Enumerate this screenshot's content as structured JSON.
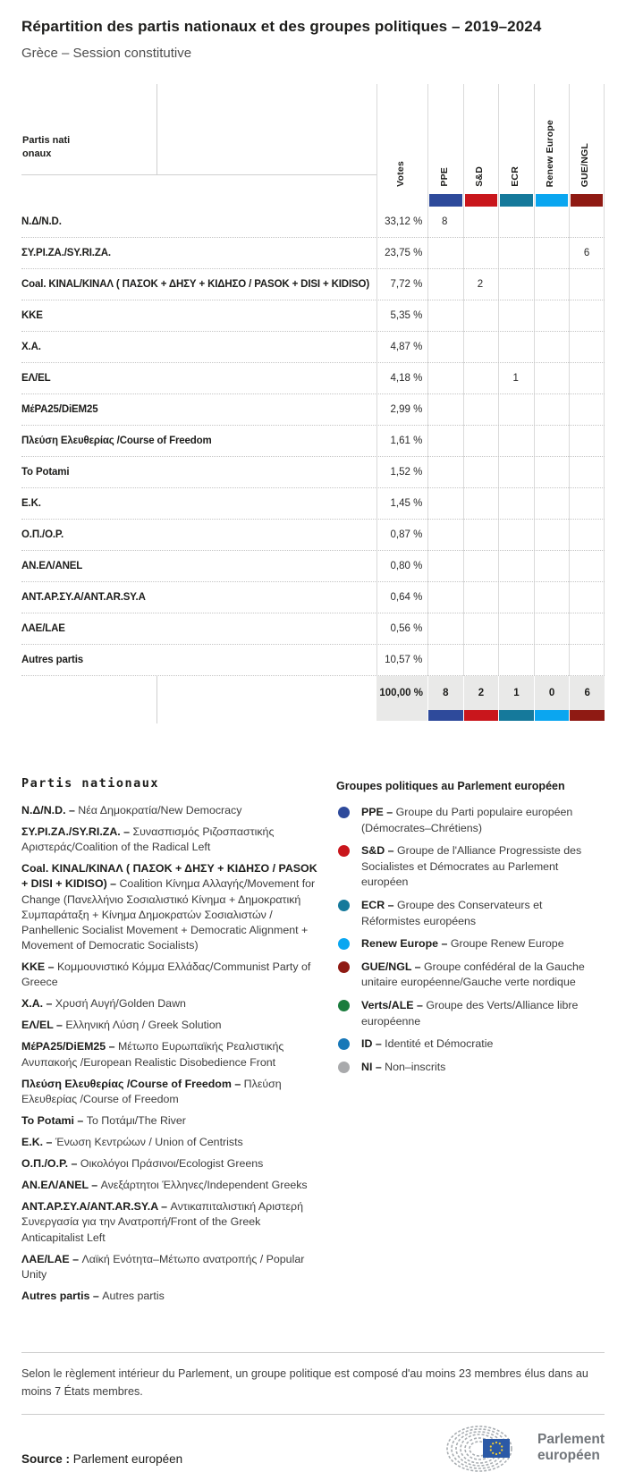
{
  "header": {
    "title": "Répartition des partis nationaux et des groupes politiques – 2019–2024",
    "subtitle": "Grèce – Session constitutive"
  },
  "table": {
    "row_header": "Partis nationaux",
    "votes_header": "Votes",
    "groups": [
      {
        "label": "PPE",
        "color": "#2e4a9b"
      },
      {
        "label": "S&D",
        "color": "#c9161c"
      },
      {
        "label": "ECR",
        "color": "#15799b"
      },
      {
        "label": "Renew Europe",
        "color": "#0aa6f0"
      },
      {
        "label": "GUE/NGL",
        "color": "#8f1a13"
      }
    ],
    "rows": [
      {
        "party": "Ν.Δ/N.D.",
        "votes": "33,12 %",
        "seats": [
          "8",
          "",
          "",
          "",
          ""
        ]
      },
      {
        "party": "ΣΥ.ΡΙ.ΖΑ./SY.RI.ZA.",
        "votes": "23,75 %",
        "seats": [
          "",
          "",
          "",
          "",
          "6"
        ]
      },
      {
        "party": "Coal. KINAL/ΚΙΝΑΛ ( ΠΑΣΟΚ + ΔΗΣΥ + ΚΙΔΗΣΟ / PASOK + DISI + KIDISO)",
        "votes": "7,72 %",
        "seats": [
          "",
          "2",
          "",
          "",
          ""
        ]
      },
      {
        "party": "ΚΚΕ",
        "votes": "5,35 %",
        "seats": [
          "",
          "",
          "",
          "",
          ""
        ]
      },
      {
        "party": "Χ.Α.",
        "votes": "4,87 %",
        "seats": [
          "",
          "",
          "",
          "",
          ""
        ]
      },
      {
        "party": "ΕΛ/EL",
        "votes": "4,18 %",
        "seats": [
          "",
          "",
          "1",
          "",
          ""
        ]
      },
      {
        "party": "ΜέΡΑ25/DiEM25",
        "votes": "2,99 %",
        "seats": [
          "",
          "",
          "",
          "",
          ""
        ]
      },
      {
        "party": "Πλεύση Ελευθερίας /Course of Freedom",
        "votes": "1,61 %",
        "seats": [
          "",
          "",
          "",
          "",
          ""
        ]
      },
      {
        "party": "To Potami",
        "votes": "1,52 %",
        "seats": [
          "",
          "",
          "",
          "",
          ""
        ]
      },
      {
        "party": "Ε.Κ.",
        "votes": "1,45 %",
        "seats": [
          "",
          "",
          "",
          "",
          ""
        ]
      },
      {
        "party": "Ο.Π./O.P.",
        "votes": "0,87 %",
        "seats": [
          "",
          "",
          "",
          "",
          ""
        ]
      },
      {
        "party": "ΑΝ.ΕΛ/ANEL",
        "votes": "0,80 %",
        "seats": [
          "",
          "",
          "",
          "",
          ""
        ]
      },
      {
        "party": "ΑΝΤ.ΑΡ.ΣΥ.Α/ANT.AR.SY.A",
        "votes": "0,64 %",
        "seats": [
          "",
          "",
          "",
          "",
          ""
        ]
      },
      {
        "party": "ΛΑΕ/LAE",
        "votes": "0,56 %",
        "seats": [
          "",
          "",
          "",
          "",
          ""
        ]
      },
      {
        "party": "Autres partis",
        "votes": "10,57 %",
        "seats": [
          "",
          "",
          "",
          "",
          ""
        ]
      }
    ],
    "total": {
      "votes": "100,00 %",
      "seats": [
        "8",
        "2",
        "1",
        "0",
        "6"
      ]
    }
  },
  "legend_parties": {
    "heading": "Partis nationaux",
    "items": [
      {
        "name": "Ν.Δ/N.D.",
        "description": "Νέα Δημοκρατία/New Democracy"
      },
      {
        "name": "ΣΥ.ΡΙ.ΖΑ./SY.RI.ZA.",
        "description": "Συνασπισμός Ριζοσπαστικής Αριστεράς/Coalition of the Radical Left"
      },
      {
        "name": "Coal. KINAL/ΚΙΝΑΛ ( ΠΑΣΟΚ + ΔΗΣΥ + ΚΙΔΗΣΟ / PASOK + DISI + KIDISO)",
        "description": "Coalition Κίνημα Αλλαγής/Movement for Change (Πανελλήνιο Σοσιαλιστικό Κίνημα + Δημοκρατική Συμπαράταξη + Κίνημα Δημοκρατών Σοσιαλιστών / Panhellenic Socialist Movement + Democratic Alignment + Movement of Democratic Socialists)"
      },
      {
        "name": "ΚΚΕ",
        "description": "Κομμουνιστικό Κόμμα Ελλάδας/Communist Party of Greece"
      },
      {
        "name": "Χ.Α.",
        "description": "Χρυσή Αυγή/Golden Dawn"
      },
      {
        "name": "ΕΛ/EL",
        "description": "Ελληνική Λύση / Greek Solution"
      },
      {
        "name": "ΜέΡΑ25/DiEM25",
        "description": "Μέτωπο Ευρωπαϊκής Ρεαλιστικής Ανυπακοής /European Realistic Disobedience Front"
      },
      {
        "name": "Πλεύση Ελευθερίας /Course of Freedom",
        "description": "Πλεύση Ελευθερίας /Course of Freedom"
      },
      {
        "name": "To Potami",
        "description": "Το Ποτάμι/The River"
      },
      {
        "name": "Ε.Κ.",
        "description": "Ένωση Κεντρώων / Union of Centrists"
      },
      {
        "name": "Ο.Π./O.P.",
        "description": "Οικολόγοι Πράσινοι/Ecologist Greens"
      },
      {
        "name": "ΑΝ.ΕΛ/ANEL",
        "description": "Ανεξάρτητοι Έλληνες/Independent Greeks"
      },
      {
        "name": "ΑΝΤ.ΑΡ.ΣΥ.Α/ANT.AR.SY.A",
        "description": "Αντικαπιταλιστική Αριστερή Συνεργασία για την Ανατροπή/Front of the Greek Anticapitalist Left"
      },
      {
        "name": "ΛΑΕ/LAE",
        "description": "Λαϊκή Ενότητα–Μέτωπο ανατροπής / Popular Unity"
      },
      {
        "name": "Autres partis",
        "description": "Autres partis"
      }
    ]
  },
  "legend_groups": {
    "heading": "Groupes politiques au Parlement européen",
    "items": [
      {
        "name": "PPE",
        "color": "#2e4a9b",
        "description": "Groupe du Parti populaire européen (Démocrates–Chrétiens)"
      },
      {
        "name": "S&D",
        "color": "#c9161c",
        "description": "Groupe de l'Alliance Progressiste des Socialistes et Démocrates au Parlement européen"
      },
      {
        "name": "ECR",
        "color": "#15799b",
        "description": "Groupe des Conservateurs et Réformistes européens"
      },
      {
        "name": "Renew Europe",
        "color": "#0aa6f0",
        "description": "Groupe Renew Europe"
      },
      {
        "name": "GUE/NGL",
        "color": "#8f1a13",
        "description": "Groupe confédéral de la Gauche unitaire européenne/Gauche verte nordique"
      },
      {
        "name": "Verts/ALE",
        "color": "#1b7c3d",
        "description": "Groupe des Verts/Alliance libre européenne"
      },
      {
        "name": "ID",
        "color": "#1878b8",
        "description": "Identité et Démocratie"
      },
      {
        "name": "NI",
        "color": "#a9aaac",
        "description": "Non–inscrits"
      }
    ]
  },
  "footer": {
    "note": "Selon le règlement intérieur du Parlement, un groupe politique est composé d'au moins 23 membres élus dans au moins 7 États membres.",
    "source_label": "Source :",
    "source_value": "Parlement européen",
    "logo": {
      "line1": "Parlement",
      "line2": "européen"
    }
  },
  "chart_data": {
    "type": "table",
    "title": "Répartition des partis nationaux et des groupes politiques – 2019–2024",
    "subtitle": "Grèce – Session constitutive",
    "columns": [
      "Votes",
      "PPE",
      "S&D",
      "ECR",
      "Renew Europe",
      "GUE/NGL"
    ],
    "group_colors": {
      "PPE": "#2e4a9b",
      "S&D": "#c9161c",
      "ECR": "#15799b",
      "Renew Europe": "#0aa6f0",
      "GUE/NGL": "#8f1a13"
    },
    "rows": [
      {
        "party": "Ν.Δ/N.D.",
        "votes_pct": 33.12,
        "PPE": 8
      },
      {
        "party": "ΣΥ.ΡΙ.ΖΑ./SY.RI.ZA.",
        "votes_pct": 23.75,
        "GUE/NGL": 6
      },
      {
        "party": "Coal. KINAL/ΚΙΝΑΛ ( ΠΑΣΟΚ + ΔΗΣΥ + ΚΙΔΗΣΟ / PASOK + DISI + KIDISO)",
        "votes_pct": 7.72,
        "S&D": 2
      },
      {
        "party": "ΚΚΕ",
        "votes_pct": 5.35
      },
      {
        "party": "Χ.Α.",
        "votes_pct": 4.87
      },
      {
        "party": "ΕΛ/EL",
        "votes_pct": 4.18,
        "ECR": 1
      },
      {
        "party": "ΜέΡΑ25/DiEM25",
        "votes_pct": 2.99
      },
      {
        "party": "Πλεύση Ελευθερίας /Course of Freedom",
        "votes_pct": 1.61
      },
      {
        "party": "To Potami",
        "votes_pct": 1.52
      },
      {
        "party": "Ε.Κ.",
        "votes_pct": 1.45
      },
      {
        "party": "Ο.Π./O.P.",
        "votes_pct": 0.87
      },
      {
        "party": "ΑΝ.ΕΛ/ANEL",
        "votes_pct": 0.8
      },
      {
        "party": "ΑΝΤ.ΑΡ.ΣΥ.Α/ANT.AR.SY.A",
        "votes_pct": 0.64
      },
      {
        "party": "ΛΑΕ/LAE",
        "votes_pct": 0.56
      },
      {
        "party": "Autres partis",
        "votes_pct": 10.57
      }
    ],
    "total": {
      "votes_pct": 100.0,
      "PPE": 8,
      "S&D": 2,
      "ECR": 1,
      "Renew Europe": 0,
      "GUE/NGL": 6
    }
  }
}
